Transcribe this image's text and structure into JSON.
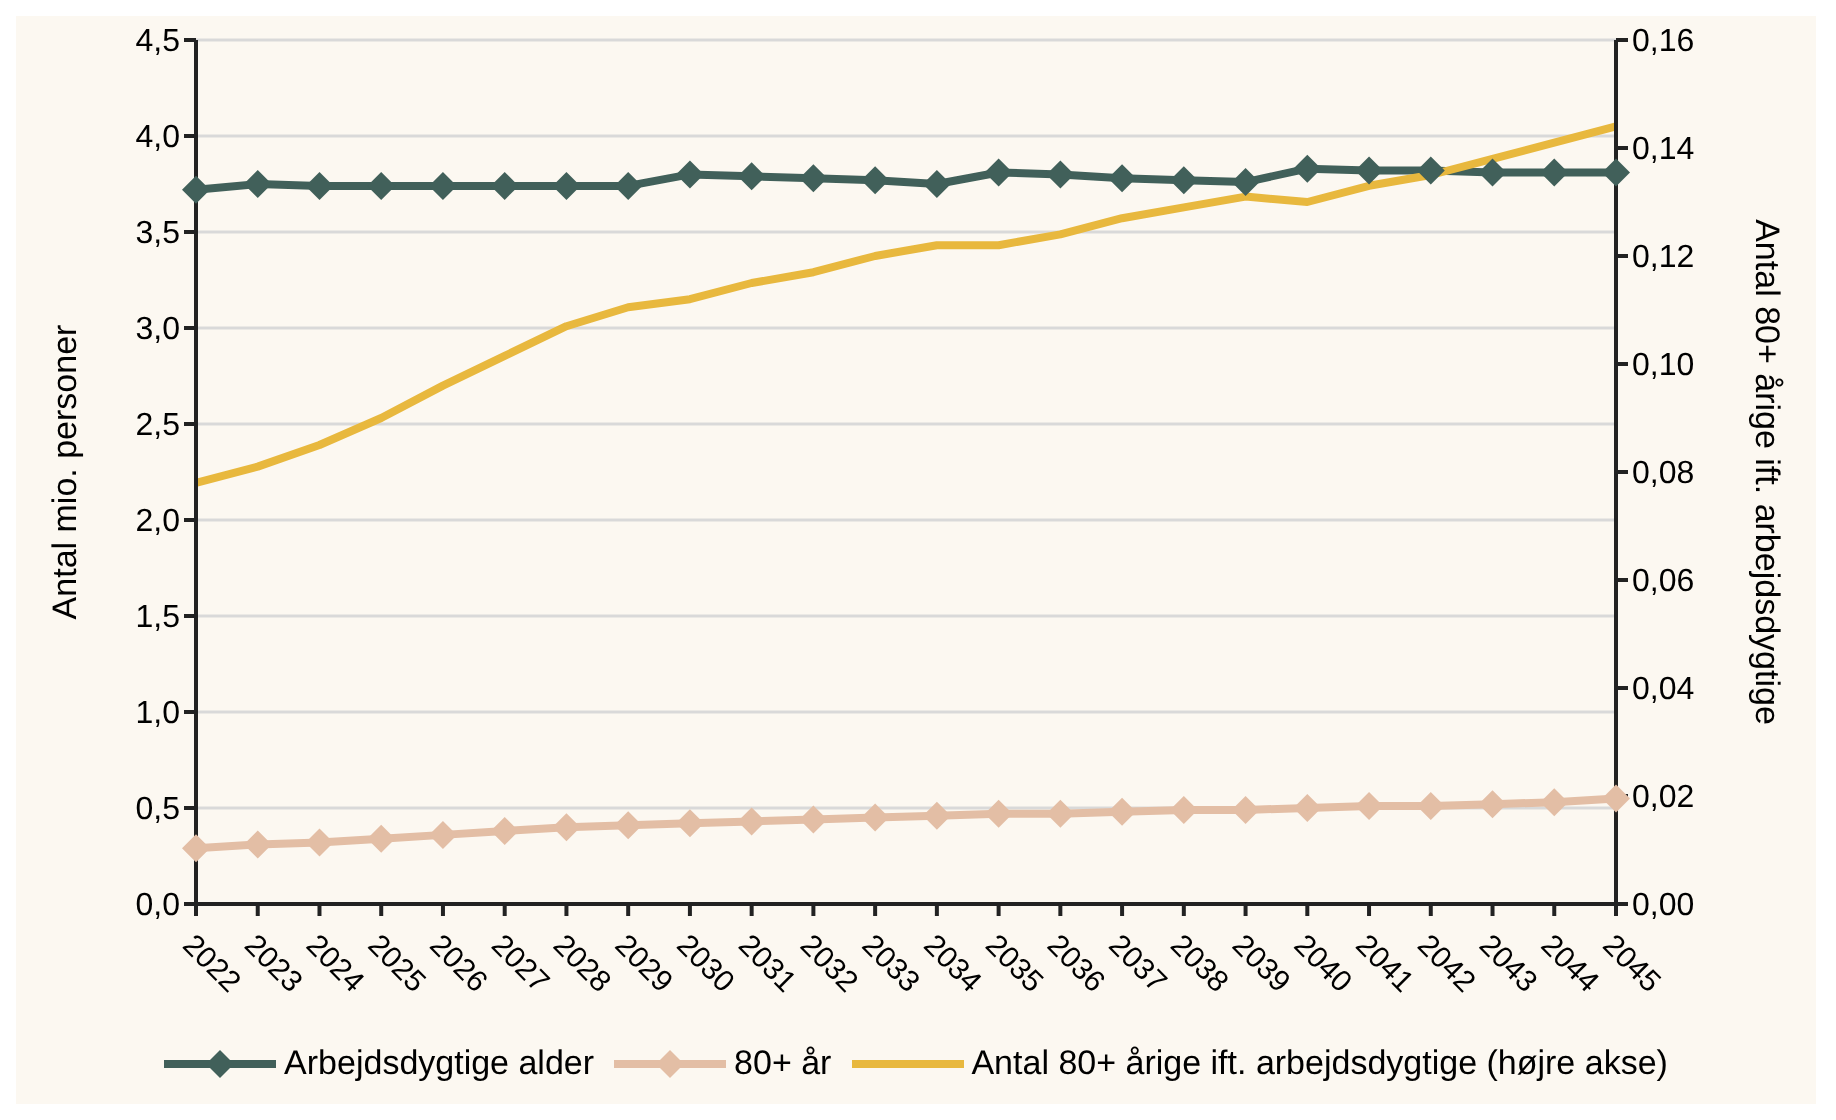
{
  "chart_data": {
    "type": "line",
    "categories": [
      "2022",
      "2023",
      "2024",
      "2025",
      "2026",
      "2027",
      "2028",
      "2029",
      "2030",
      "2031",
      "2032",
      "2033",
      "2034",
      "2035",
      "2036",
      "2037",
      "2038",
      "2039",
      "2040",
      "2041",
      "2042",
      "2043",
      "2044",
      "2045"
    ],
    "ylabel": "Antal mio. personer",
    "y2label": "Antal 80+ årige ift. arbejdsdygtige",
    "series": [
      {
        "name": "Arbejdsdygtige alder",
        "color": "#41605a",
        "marker": "diamond",
        "values": [
          3.72,
          3.75,
          3.74,
          3.74,
          3.74,
          3.74,
          3.74,
          3.74,
          3.8,
          3.79,
          3.78,
          3.77,
          3.75,
          3.81,
          3.8,
          3.78,
          3.77,
          3.76,
          3.83,
          3.82,
          3.82,
          3.81,
          3.81,
          3.81
        ]
      },
      {
        "name": "80+ år",
        "color": "#e3bea5",
        "marker": "diamond",
        "values": [
          0.29,
          0.31,
          0.32,
          0.34,
          0.36,
          0.38,
          0.4,
          0.41,
          0.42,
          0.43,
          0.44,
          0.45,
          0.46,
          0.47,
          0.47,
          0.48,
          0.49,
          0.49,
          0.5,
          0.51,
          0.51,
          0.52,
          0.53,
          0.55
        ]
      },
      {
        "name": "Antal 80+ årige ift. arbejdsdygtige (højre akse)",
        "color": "#e8b83e",
        "marker": "none",
        "axis": "y2",
        "values": [
          0.078,
          0.081,
          0.085,
          0.09,
          0.096,
          0.1015,
          0.107,
          0.1105,
          0.112,
          0.115,
          0.117,
          0.12,
          0.122,
          0.122,
          0.124,
          0.127,
          0.129,
          0.131,
          0.13,
          0.133,
          0.135,
          0.138,
          0.141,
          0.144
        ]
      }
    ],
    "ylim": [
      0,
      4.5
    ],
    "yticks": [
      {
        "value": 0,
        "label": "0,0"
      },
      {
        "value": 0.5,
        "label": "0,5"
      },
      {
        "value": 1,
        "label": "1,0"
      },
      {
        "value": 1.5,
        "label": "1,5"
      },
      {
        "value": 2,
        "label": "2,0"
      },
      {
        "value": 2.5,
        "label": "2,5"
      },
      {
        "value": 3,
        "label": "3,0"
      },
      {
        "value": 3.5,
        "label": "3,5"
      },
      {
        "value": 4,
        "label": "4,0"
      },
      {
        "value": 4.5,
        "label": "4,5"
      }
    ],
    "y2lim": [
      0,
      0.16
    ],
    "y2ticks": [
      {
        "value": 0,
        "label": "0,00"
      },
      {
        "value": 0.02,
        "label": "0,02"
      },
      {
        "value": 0.04,
        "label": "0,04"
      },
      {
        "value": 0.06,
        "label": "0,06"
      },
      {
        "value": 0.08,
        "label": "0,08"
      },
      {
        "value": 0.1,
        "label": "0,10"
      },
      {
        "value": 0.12,
        "label": "0,12"
      },
      {
        "value": 0.14,
        "label": "0,14"
      },
      {
        "value": 0.16,
        "label": "0,16"
      }
    ],
    "grid": "y",
    "legend": "bottom",
    "line_style": "solid"
  }
}
